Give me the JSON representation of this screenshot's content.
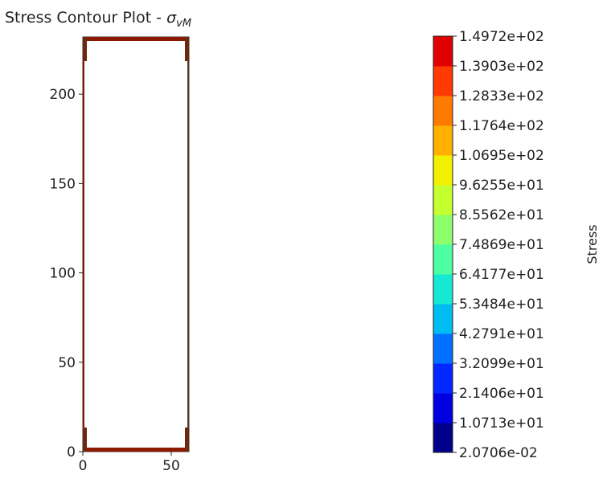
{
  "chart_data": {
    "type": "heatmap",
    "title": "Stress Contour Plot - ",
    "title_symbol": "σ",
    "title_subscript": "vM",
    "xlabel": "",
    "ylabel": "",
    "xlim": [
      0,
      60
    ],
    "ylim": [
      0,
      232
    ],
    "xticks": [
      0,
      50
    ],
    "yticks": [
      0,
      50,
      100,
      150,
      200
    ],
    "grid": false,
    "colormap": "jet",
    "colorbar": {
      "label": "Stress",
      "ticks": [
        "2.0706e-02",
        "1.0713e+01",
        "2.1406e+01",
        "3.2099e+01",
        "4.2791e+01",
        "5.3484e+01",
        "6.4177e+01",
        "7.4869e+01",
        "8.5562e+01",
        "9.6255e+01",
        "1.0695e+02",
        "1.1764e+02",
        "1.2833e+02",
        "1.3903e+02",
        "1.4972e+02"
      ],
      "colors": [
        "#00008b",
        "#0000e0",
        "#0028ff",
        "#0070ff",
        "#00bcf0",
        "#17e8d4",
        "#4dffa0",
        "#8cff6a",
        "#c4ff30",
        "#f0f000",
        "#ffb000",
        "#ff7a00",
        "#ff3a00",
        "#e00000"
      ]
    },
    "domain_outline": [
      [
        0,
        0
      ],
      [
        60,
        0
      ],
      [
        60,
        232
      ],
      [
        0,
        232
      ]
    ],
    "high_stress_edge_color": "#8b1a00",
    "interior_color": "#ffffff"
  }
}
